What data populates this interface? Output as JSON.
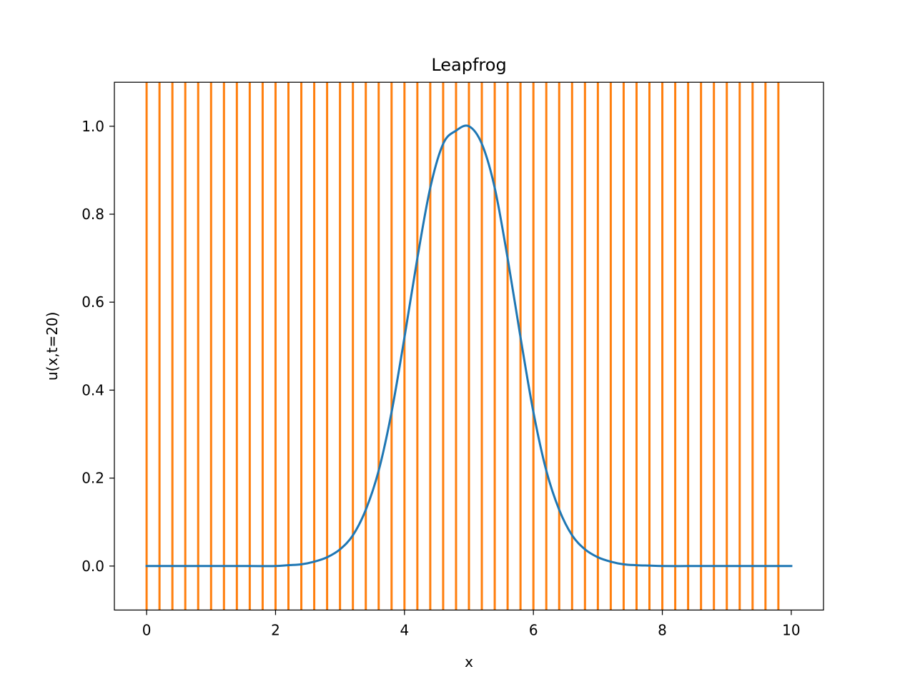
{
  "chart_data": {
    "type": "line",
    "title": "Leapfrog",
    "xlabel": "x",
    "ylabel": "u(x,t=20)",
    "xlim": [
      -0.5,
      10.5
    ],
    "ylim": [
      -0.1,
      1.1
    ],
    "xticks": [
      0,
      2,
      4,
      6,
      8,
      10
    ],
    "xtick_labels": [
      "0",
      "2",
      "4",
      "6",
      "8",
      "10"
    ],
    "yticks": [
      0.0,
      0.2,
      0.4,
      0.6,
      0.8,
      1.0
    ],
    "ytick_labels": [
      "0.0",
      "0.2",
      "0.4",
      "0.6",
      "0.8",
      "1.0"
    ],
    "grid": false,
    "legend": "none",
    "series": [
      {
        "color": "#1f77b4",
        "x": [
          0,
          0.4,
          0.8,
          1.2,
          1.6,
          2.0,
          2.2,
          2.4,
          2.6,
          2.8,
          3.0,
          3.2,
          3.4,
          3.6,
          3.8,
          4.0,
          4.2,
          4.4,
          4.6,
          4.8,
          5.0,
          5.2,
          5.4,
          5.6,
          5.8,
          6.0,
          6.2,
          6.4,
          6.6,
          6.8,
          7.0,
          7.2,
          7.4,
          7.6,
          7.8,
          8.0,
          8.4,
          8.8,
          9.2,
          9.6,
          10.0
        ],
        "y": [
          0.0,
          0.0,
          0.0,
          0.0,
          0.0,
          0.0,
          0.002,
          0.004,
          0.01,
          0.02,
          0.038,
          0.07,
          0.128,
          0.217,
          0.35,
          0.52,
          0.7,
          0.86,
          0.96,
          0.99,
          1.0,
          0.96,
          0.86,
          0.7,
          0.52,
          0.35,
          0.217,
          0.128,
          0.07,
          0.038,
          0.02,
          0.01,
          0.004,
          0.002,
          0.001,
          0.0,
          0.0,
          0.0,
          0.0,
          0.0,
          0.0
        ]
      }
    ],
    "vlines": {
      "color": "#ff7f0e",
      "x": [
        0.0,
        0.2,
        0.4,
        0.6,
        0.8,
        1.0,
        1.2,
        1.4,
        1.6,
        1.8,
        2.0,
        2.2,
        2.4,
        2.6,
        2.8,
        3.0,
        3.2,
        3.4,
        3.6,
        3.8,
        4.0,
        4.2,
        4.4,
        4.6,
        4.8,
        5.0,
        5.2,
        5.4,
        5.6,
        5.8,
        6.0,
        6.2,
        6.4,
        6.6,
        6.8,
        7.0,
        7.2,
        7.4,
        7.6,
        7.8,
        8.0,
        8.2,
        8.4,
        8.6,
        8.8,
        9.0,
        9.2,
        9.4,
        9.6,
        9.8
      ]
    }
  }
}
